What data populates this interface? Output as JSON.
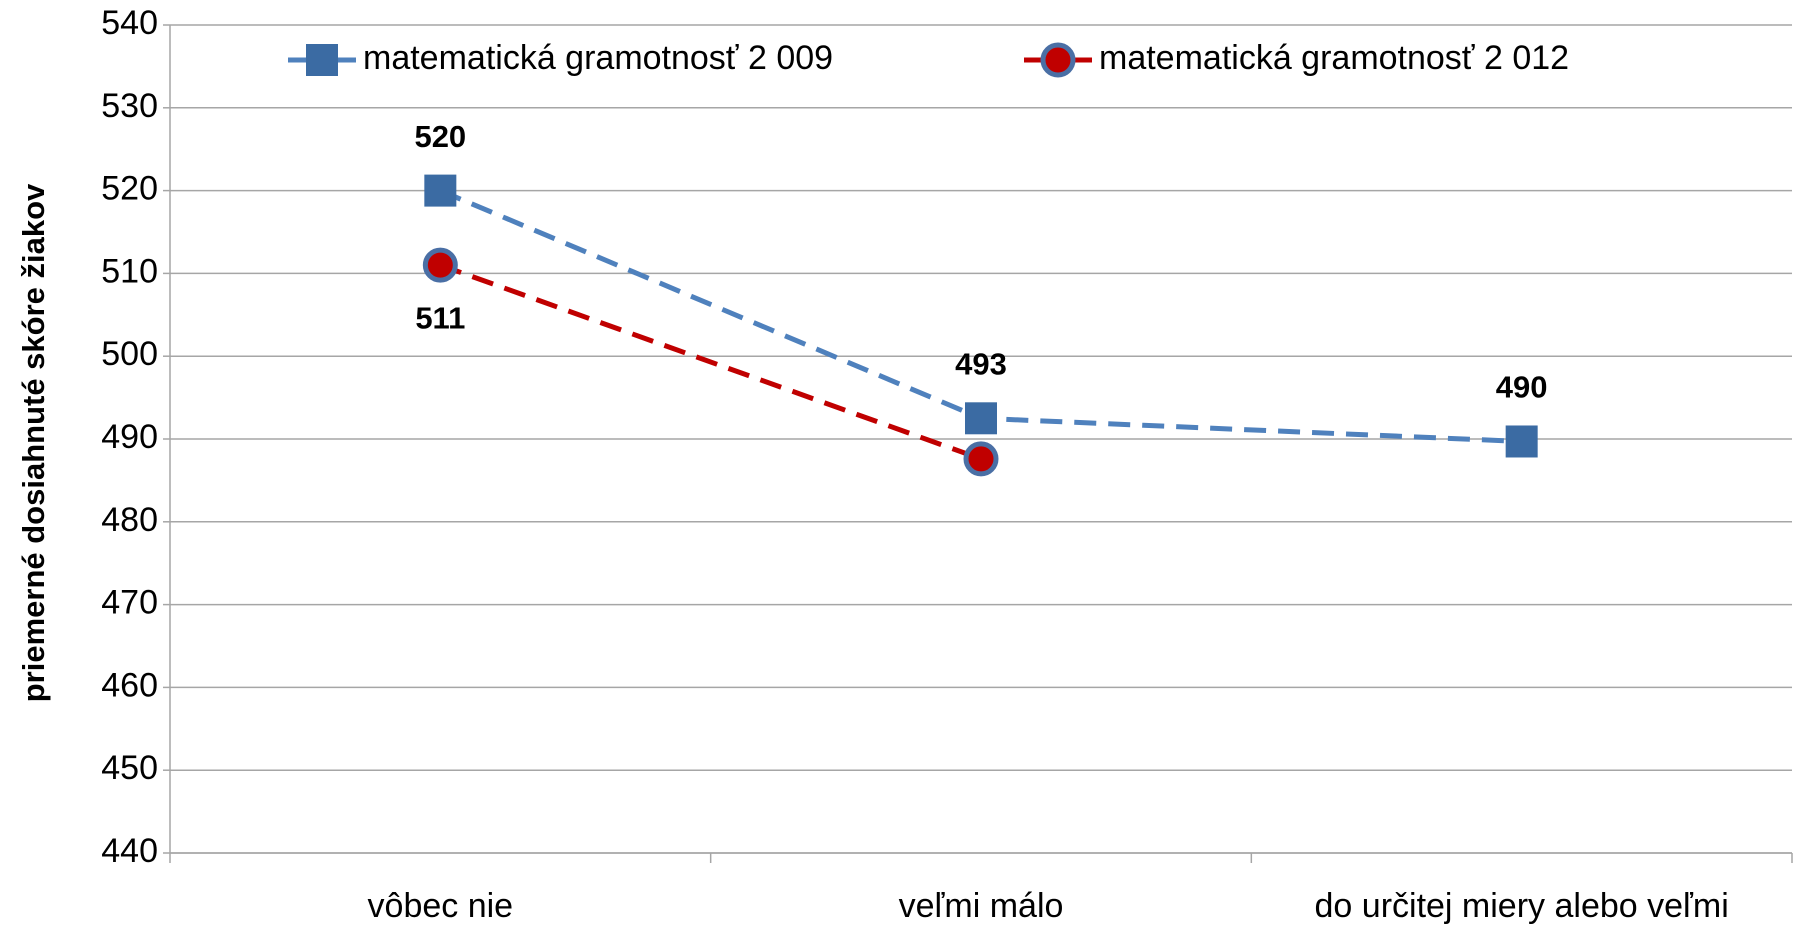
{
  "chart_data": {
    "type": "line",
    "y_label": "priemerné dosiahnuté skóre žiakov",
    "categories": [
      "vôbec nie",
      "veľmi málo",
      "do určitej miery alebo veľmi"
    ],
    "series": [
      {
        "name": "matematická gramotnosť 2 009",
        "color": "#4f81bd",
        "marker_color": "#3b6ba3",
        "marker": "square",
        "values": [
          520,
          492.5,
          489.7
        ],
        "value_labels": [
          "520",
          "493",
          "490"
        ]
      },
      {
        "name": "matematická gramotnosť 2 012",
        "color": "#c00000",
        "marker_color": "#c00000",
        "marker": "circle",
        "values": [
          511,
          487.6,
          null
        ],
        "value_labels": [
          "511",
          null,
          null
        ]
      }
    ],
    "ylim": [
      440,
      540
    ],
    "yticks": [
      440,
      450,
      460,
      470,
      480,
      490,
      500,
      510,
      520,
      530,
      540
    ],
    "grid": true,
    "legend": "top"
  }
}
